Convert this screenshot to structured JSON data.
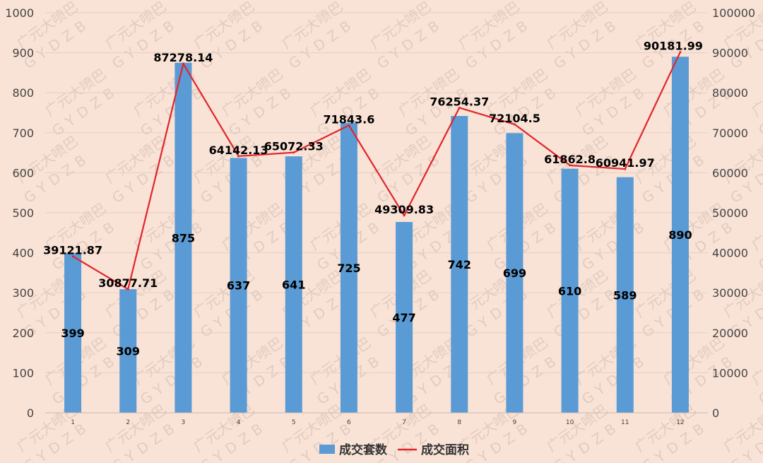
{
  "chart_data": {
    "type": "bar",
    "categories": [
      "1",
      "2",
      "3",
      "4",
      "5",
      "6",
      "7",
      "8",
      "9",
      "10",
      "11",
      "12"
    ],
    "series": [
      {
        "name": "成交套数",
        "type": "bar",
        "axis": "left",
        "color": "#5b9bd5",
        "values": [
          399,
          309,
          875,
          637,
          641,
          725,
          477,
          742,
          699,
          610,
          589,
          890
        ]
      },
      {
        "name": "成交面积",
        "type": "line",
        "axis": "right",
        "color": "#e0262b",
        "values": [
          "39121.87",
          "30877.71",
          "87278.14",
          "64142.13",
          "65072.33",
          "71843.6",
          "49309.83",
          "76254.37",
          "72104.5",
          "61862.8",
          "60941.97",
          "90181.99"
        ]
      }
    ],
    "y_left": {
      "ticks": [
        "0",
        "100",
        "200",
        "300",
        "400",
        "500",
        "600",
        "700",
        "800",
        "900",
        "1000"
      ],
      "range": [
        0,
        1000
      ]
    },
    "y_right": {
      "ticks": [
        "0",
        "10000",
        "20000",
        "30000",
        "40000",
        "50000",
        "60000",
        "70000",
        "80000",
        "90000",
        "100000"
      ],
      "range": [
        0,
        100000
      ]
    },
    "grid": true,
    "legend_position": "bottom",
    "watermark": [
      "广元大喷巴",
      "GYDZB"
    ]
  }
}
